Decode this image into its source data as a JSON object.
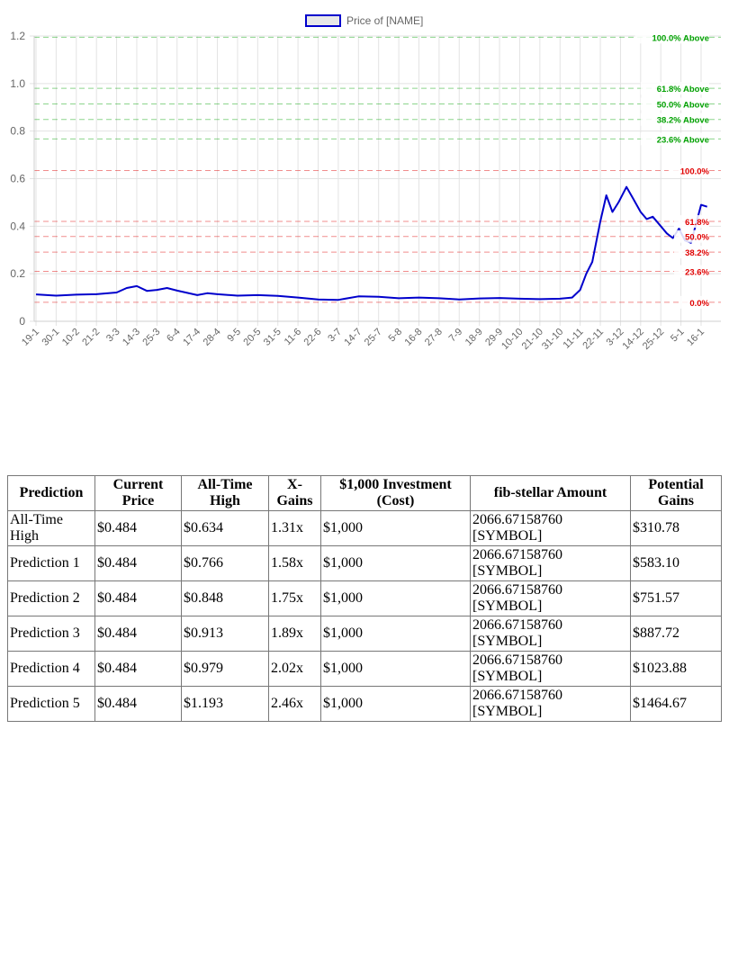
{
  "chart_data": {
    "type": "line",
    "legend": {
      "label": "Price of [NAME]",
      "placement": "top",
      "color": "#0000cc"
    },
    "y_range": [
      0,
      1.2
    ],
    "y_ticks": [
      "0",
      "0.2",
      "0.4",
      "0.6",
      "0.8",
      "1.0",
      "1.2"
    ],
    "x_ticks": [
      "19-1",
      "30-1",
      "10-2",
      "21-2",
      "3-3",
      "14-3",
      "25-3",
      "6-4",
      "17-4",
      "28-4",
      "9-5",
      "20-5",
      "31-5",
      "11-6",
      "22-6",
      "3-7",
      "14-7",
      "25-7",
      "5-8",
      "16-8",
      "27-8",
      "7-9",
      "18-9",
      "29-9",
      "10-10",
      "21-10",
      "31-10",
      "11-11",
      "22-11",
      "3-12",
      "14-12",
      "25-12",
      "5-1",
      "16-1"
    ],
    "series": [
      {
        "color": "#0000cc",
        "points": [
          [
            0,
            0.113
          ],
          [
            1,
            0.108
          ],
          [
            2,
            0.112
          ],
          [
            3,
            0.114
          ],
          [
            4,
            0.121
          ],
          [
            4.5,
            0.14
          ],
          [
            5,
            0.148
          ],
          [
            5.5,
            0.128
          ],
          [
            6,
            0.132
          ],
          [
            6.5,
            0.14
          ],
          [
            7,
            0.129
          ],
          [
            8,
            0.11
          ],
          [
            8.5,
            0.118
          ],
          [
            9,
            0.114
          ],
          [
            10,
            0.108
          ],
          [
            11,
            0.11
          ],
          [
            12,
            0.107
          ],
          [
            13,
            0.1
          ],
          [
            14,
            0.092
          ],
          [
            15,
            0.09
          ],
          [
            16,
            0.105
          ],
          [
            17,
            0.103
          ],
          [
            18,
            0.097
          ],
          [
            19,
            0.1
          ],
          [
            20,
            0.097
          ],
          [
            21,
            0.092
          ],
          [
            22,
            0.096
          ],
          [
            23,
            0.098
          ],
          [
            24,
            0.095
          ],
          [
            25,
            0.093
          ],
          [
            26,
            0.095
          ],
          [
            26.6,
            0.1
          ],
          [
            27,
            0.132
          ],
          [
            27.3,
            0.2
          ],
          [
            27.6,
            0.25
          ],
          [
            28,
            0.42
          ],
          [
            28.3,
            0.53
          ],
          [
            28.6,
            0.46
          ],
          [
            28.9,
            0.5
          ],
          [
            29.3,
            0.565
          ],
          [
            29.6,
            0.52
          ],
          [
            30,
            0.46
          ],
          [
            30.3,
            0.43
          ],
          [
            30.6,
            0.44
          ],
          [
            31,
            0.4
          ],
          [
            31.3,
            0.37
          ],
          [
            31.6,
            0.35
          ],
          [
            31.9,
            0.39
          ],
          [
            32.2,
            0.34
          ],
          [
            32.5,
            0.33
          ],
          [
            33,
            0.49
          ],
          [
            33.3,
            0.482
          ]
        ]
      }
    ],
    "fib_levels": [
      {
        "label": "100.0% Above",
        "value": 1.195,
        "color": "#00a000"
      },
      {
        "label": "61.8% Above",
        "value": 0.98,
        "color": "#00a000"
      },
      {
        "label": "50.0% Above",
        "value": 0.914,
        "color": "#00a000"
      },
      {
        "label": "38.2% Above",
        "value": 0.849,
        "color": "#00a000"
      },
      {
        "label": "23.6% Above",
        "value": 0.767,
        "color": "#00a000"
      },
      {
        "label": "100.0%",
        "value": 0.634,
        "color": "#e00000"
      },
      {
        "label": "61.8%",
        "value": 0.42,
        "color": "#e00000"
      },
      {
        "label": "50.0%",
        "value": 0.357,
        "color": "#e00000"
      },
      {
        "label": "38.2%",
        "value": 0.291,
        "color": "#e00000"
      },
      {
        "label": "23.6%",
        "value": 0.21,
        "color": "#e00000"
      },
      {
        "label": "0.0%",
        "value": 0.08,
        "color": "#e00000"
      }
    ],
    "grid": true
  },
  "table": {
    "headers": [
      "Prediction",
      "Current Price",
      "All-Time High",
      "X-Gains",
      "$1,000 Investment (Cost)",
      "fib-stellar Amount",
      "Potential Gains"
    ],
    "rows": [
      [
        "All-Time High",
        "$0.484",
        "$0.634",
        "1.31x",
        "$1,000",
        "2066.67158760 [SYMBOL]",
        "$310.78"
      ],
      [
        "Prediction 1",
        "$0.484",
        "$0.766",
        "1.58x",
        "$1,000",
        "2066.67158760 [SYMBOL]",
        "$583.10"
      ],
      [
        "Prediction 2",
        "$0.484",
        "$0.848",
        "1.75x",
        "$1,000",
        "2066.67158760 [SYMBOL]",
        "$751.57"
      ],
      [
        "Prediction 3",
        "$0.484",
        "$0.913",
        "1.89x",
        "$1,000",
        "2066.67158760 [SYMBOL]",
        "$887.72"
      ],
      [
        "Prediction 4",
        "$0.484",
        "$0.979",
        "2.02x",
        "$1,000",
        "2066.67158760 [SYMBOL]",
        "$1023.88"
      ],
      [
        "Prediction 5",
        "$0.484",
        "$1.193",
        "2.46x",
        "$1,000",
        "2066.67158760 [SYMBOL]",
        "$1464.67"
      ]
    ]
  }
}
